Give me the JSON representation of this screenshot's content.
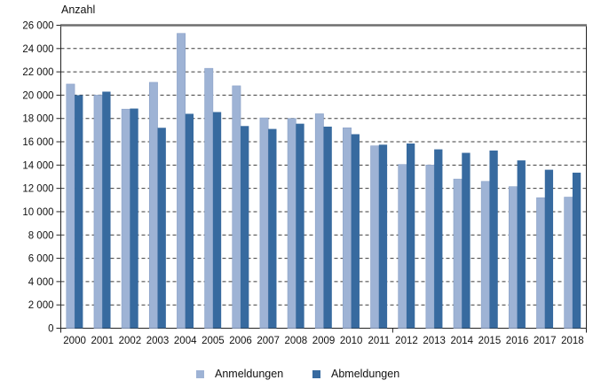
{
  "chart_data": {
    "type": "bar",
    "title": "Anzahl",
    "categories": [
      "2000",
      "2001",
      "2002",
      "2003",
      "2004",
      "2005",
      "2006",
      "2007",
      "2008",
      "2009",
      "2010",
      "2011",
      "2012",
      "2013",
      "2014",
      "2015",
      "2016",
      "2017",
      "2018"
    ],
    "series": [
      {
        "name": "Anmeldungen",
        "color": "#9EB3D5",
        "values": [
          20950,
          20000,
          18800,
          21100,
          25300,
          22300,
          20800,
          18050,
          18000,
          18400,
          17200,
          15650,
          14050,
          14000,
          12800,
          12600,
          12150,
          11200,
          11250
        ]
      },
      {
        "name": "Abmeldungen",
        "color": "#376A9F",
        "values": [
          20000,
          20300,
          18850,
          17200,
          18400,
          18550,
          17350,
          17100,
          17550,
          17300,
          16650,
          15750,
          15850,
          15350,
          15050,
          15250,
          14400,
          13600,
          13350
        ]
      }
    ],
    "ylabel": "Anzahl",
    "xlabel": "",
    "ylim": [
      0,
      26000
    ],
    "ytick_step": 2000,
    "grid": "horizontal-dashed",
    "legend_position": "bottom"
  }
}
